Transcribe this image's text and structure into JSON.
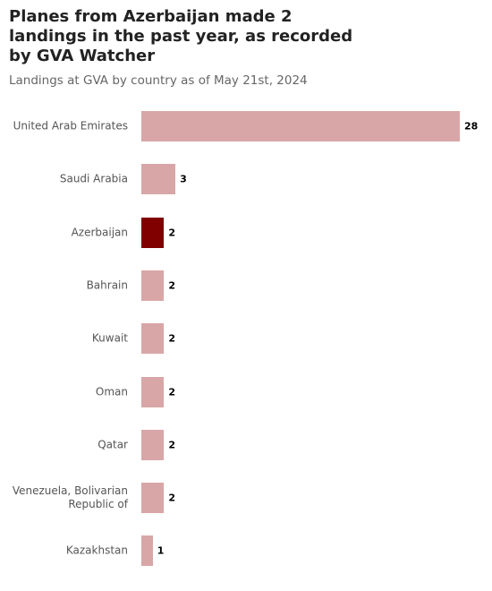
{
  "chart_data": {
    "type": "bar",
    "orientation": "horizontal",
    "title": "Planes from Azerbaijan made 2 landings in the past year, as recorded by GVA Watcher",
    "subtitle": "Landings at GVA by country as of May 21st, 2024",
    "categories": [
      "United Arab Emirates",
      "Saudi Arabia",
      "Azerbaijan",
      "Bahrain",
      "Kuwait",
      "Oman",
      "Qatar",
      "Venezuela, Bolivarian Republic of",
      "Kazakhstan"
    ],
    "values": [
      28,
      3,
      2,
      2,
      2,
      2,
      2,
      2,
      1
    ],
    "colors": [
      "#d9a6a7",
      "#d9a6a7",
      "#800000",
      "#d9a6a7",
      "#d9a6a7",
      "#d9a6a7",
      "#d9a6a7",
      "#d9a6a7",
      "#d9a6a7"
    ]
  }
}
